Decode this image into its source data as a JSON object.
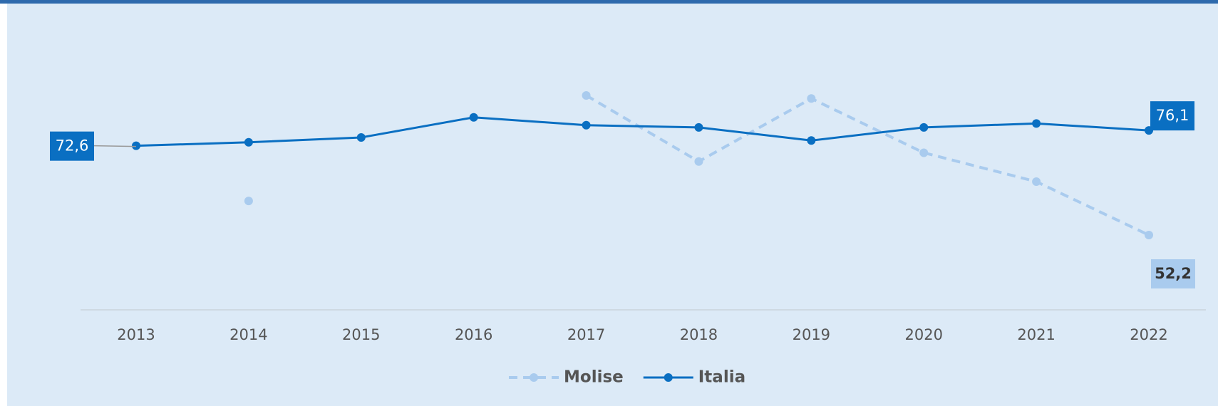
{
  "chart_data": {
    "type": "line",
    "categories": [
      "2013",
      "2014",
      "2015",
      "2016",
      "2017",
      "2018",
      "2019",
      "2020",
      "2021",
      "2022"
    ],
    "series": [
      {
        "name": "Molise",
        "color": "#a9cbee",
        "dashed": true,
        "values": [
          null,
          60.0,
          null,
          null,
          84.1,
          69.0,
          83.4,
          71.0,
          64.4,
          52.2
        ],
        "value_labels": [
          null,
          null,
          null,
          null,
          null,
          null,
          null,
          null,
          null,
          "52,2"
        ]
      },
      {
        "name": "Italia",
        "color": "#0a6fc2",
        "dashed": false,
        "values": [
          72.6,
          73.4,
          74.5,
          79.1,
          77.3,
          76.8,
          73.8,
          76.8,
          77.7,
          76.1
        ],
        "value_labels": [
          "72,6",
          null,
          null,
          null,
          null,
          null,
          null,
          null,
          null,
          "76,1"
        ]
      }
    ],
    "legend": "bottom"
  }
}
